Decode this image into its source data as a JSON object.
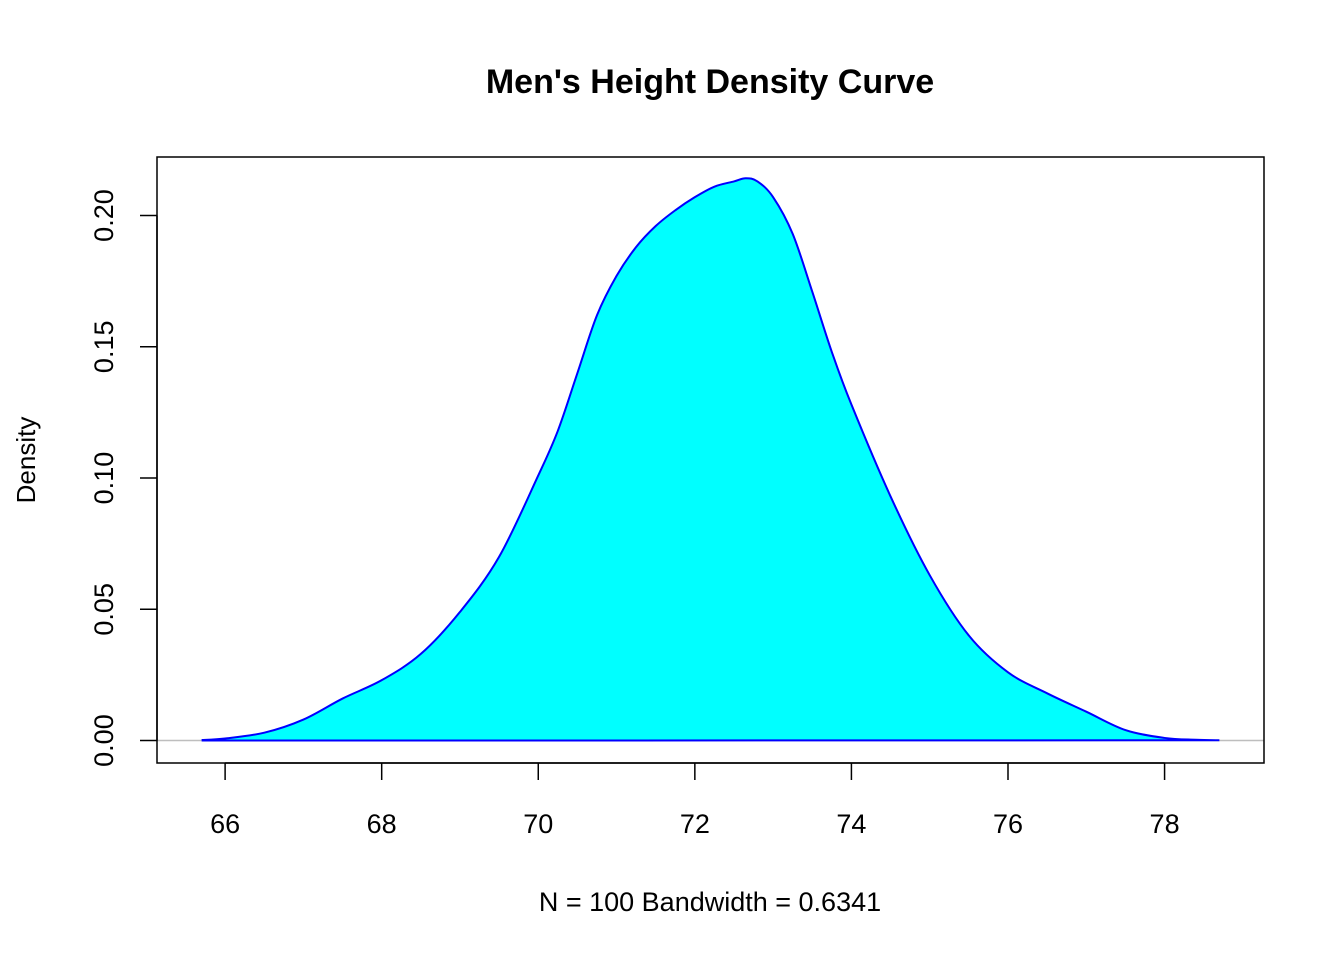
{
  "chart_data": {
    "type": "area",
    "title": "Men's Height Density Curve",
    "xlabel": "N = 100   Bandwidth = 0.6341",
    "ylabel": "Density",
    "xlim": [
      65.13,
      79.27
    ],
    "ylim": [
      -0.00855,
      0.2223
    ],
    "x_ticks": [
      66,
      68,
      70,
      72,
      74,
      76,
      78
    ],
    "x_tick_labels": [
      "66",
      "68",
      "70",
      "72",
      "74",
      "76",
      "78"
    ],
    "y_ticks": [
      0,
      0.05,
      0.1,
      0.15,
      0.2
    ],
    "y_tick_labels": [
      "0.00",
      "0.05",
      "0.10",
      "0.15",
      "0.20"
    ],
    "grid": false,
    "legend": "none",
    "baseline": 0,
    "colors": {
      "fill": "#00ffff",
      "line": "#0000ff",
      "baseline": "#bebebe",
      "frame": "#000000"
    },
    "series": [
      {
        "x": [
          65.7,
          66.0,
          66.5,
          67.0,
          67.5,
          68.0,
          68.5,
          69.0,
          69.5,
          70.0,
          70.25,
          70.5,
          70.75,
          71.0,
          71.25,
          71.5,
          71.75,
          72.0,
          72.25,
          72.5,
          72.65,
          72.8,
          73.0,
          73.25,
          73.5,
          73.75,
          74.0,
          74.5,
          75.0,
          75.5,
          76.0,
          76.5,
          77.0,
          77.5,
          78.0,
          78.4,
          78.7
        ],
        "y": [
          0.0002,
          0.0008,
          0.003,
          0.008,
          0.016,
          0.023,
          0.033,
          0.049,
          0.07,
          0.101,
          0.118,
          0.14,
          0.162,
          0.177,
          0.188,
          0.196,
          0.202,
          0.207,
          0.211,
          0.213,
          0.2142,
          0.213,
          0.207,
          0.193,
          0.171,
          0.148,
          0.128,
          0.093,
          0.063,
          0.04,
          0.026,
          0.018,
          0.011,
          0.004,
          0.001,
          0.0003,
          0.0001
        ]
      }
    ]
  }
}
